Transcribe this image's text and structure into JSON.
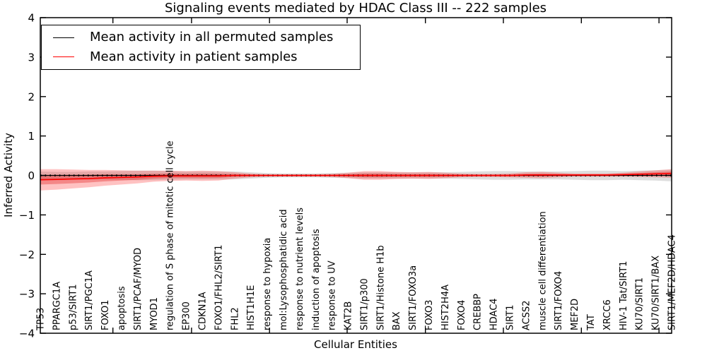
{
  "chart_data": {
    "type": "line",
    "title": "Signaling events mediated by HDAC Class III -- 222 samples",
    "xlabel": "Cellular Entities",
    "ylabel": "Inferred Activity",
    "ylim": [
      -4,
      4
    ],
    "yticks": [
      -4,
      -3,
      -2,
      -1,
      0,
      1,
      2,
      3,
      4
    ],
    "grid": false,
    "legend_position": "upper left",
    "categories": [
      "TP53",
      "PPARGC1A",
      "p53/SIRT1",
      "SIRT1/PGC1A",
      "FOXO1",
      "apoptosis",
      "SIRT1/PCAF/MYOD",
      "MYOD1",
      "regulation of S phase of mitotic cell cycle",
      "EP300",
      "CDKN1A",
      "FOXO1/FHL2/SIRT1",
      "FHL2",
      "HIST1H1E",
      "response to hypoxia",
      "mol:Lysophosphatidic acid",
      "response to nutrient levels",
      "induction of apoptosis",
      "response to UV",
      "KAT2B",
      "SIRT1/p300",
      "SIRT1/Histone H1b",
      "BAX",
      "SIRT1/FOXO3a",
      "FOXO3",
      "HIST2H4A",
      "FOXO4",
      "CREBBP",
      "HDAC4",
      "SIRT1",
      "ACSS2",
      "muscle cell differentiation",
      "SIRT1/FOXO4",
      "MEF2D",
      "TAT",
      "XRCC6",
      "HIV-1 Tat/SIRT1",
      "KU70/SIRT1",
      "KU70/SIRT1/BAX",
      "SIRT1/MEF2D/HDAC4"
    ],
    "series": [
      {
        "name": "Mean activity in all permuted samples",
        "color": "#000000",
        "band_color": "rgba(0,0,0,0.13)",
        "dotted_overlay": true,
        "values": [
          0,
          0,
          0,
          0,
          0,
          0,
          0,
          0,
          0,
          0,
          0,
          0,
          0,
          0,
          0,
          0,
          0,
          0,
          0,
          0,
          0,
          0,
          0,
          0,
          0,
          0,
          0,
          0,
          0,
          0,
          0,
          0,
          0,
          0,
          0,
          0,
          0,
          0,
          0,
          0
        ],
        "band_halfwidth": [
          0.1,
          0.09,
          0.09,
          0.1,
          0.1,
          0.11,
          0.12,
          0.12,
          0.11,
          0.1,
          0.1,
          0.1,
          0.1,
          0.08,
          0.06,
          0.05,
          0.05,
          0.05,
          0.06,
          0.07,
          0.08,
          0.08,
          0.08,
          0.08,
          0.08,
          0.08,
          0.09,
          0.1,
          0.11,
          0.11,
          0.1,
          0.1,
          0.1,
          0.11,
          0.12,
          0.12,
          0.11,
          0.12,
          0.13,
          0.15
        ]
      },
      {
        "name": "Mean activity in patient samples",
        "color": "#ff0000",
        "band_color": "rgba(255,0,0,0.24)",
        "band_inner_color": "rgba(220,0,0,0.30)",
        "band_inner_scale": 0.45,
        "dotted_overlay": false,
        "values": [
          -0.11,
          -0.1,
          -0.09,
          -0.08,
          -0.06,
          -0.05,
          -0.04,
          -0.02,
          -0.01,
          -0.01,
          -0.01,
          -0.01,
          0,
          0,
          0,
          0,
          0,
          0,
          0,
          0,
          0,
          0,
          0,
          0,
          0,
          0,
          0,
          0,
          0,
          0,
          0.01,
          0.01,
          0.01,
          0.01,
          0.01,
          0.01,
          0.02,
          0.03,
          0.04,
          0.05
        ],
        "band_halfwidth": [
          0.27,
          0.26,
          0.24,
          0.22,
          0.2,
          0.18,
          0.16,
          0.14,
          0.13,
          0.12,
          0.13,
          0.12,
          0.08,
          0.05,
          0.03,
          0.03,
          0.03,
          0.03,
          0.04,
          0.07,
          0.11,
          0.11,
          0.09,
          0.08,
          0.09,
          0.07,
          0.05,
          0.04,
          0.04,
          0.05,
          0.07,
          0.08,
          0.06,
          0.04,
          0.04,
          0.04,
          0.05,
          0.07,
          0.09,
          0.11
        ]
      }
    ]
  }
}
